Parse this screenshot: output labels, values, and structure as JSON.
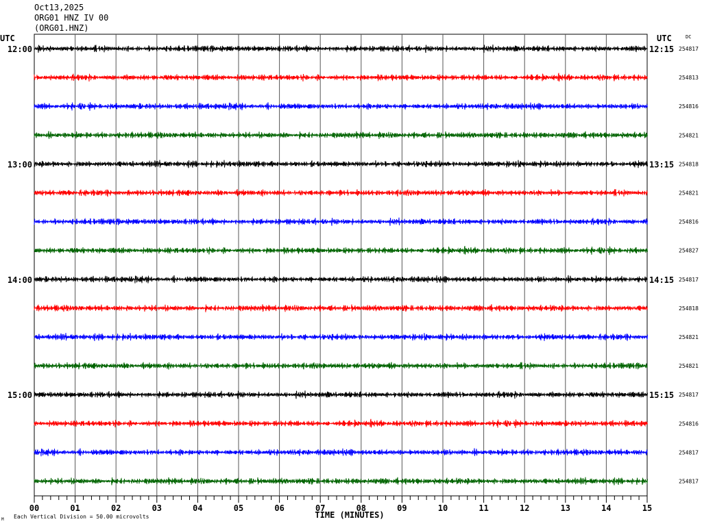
{
  "header": {
    "date": "Oct13,2025",
    "station": "ORG01 HNZ IV 00",
    "channel": "(ORG01.HNZ)"
  },
  "chart_data": {
    "type": "line",
    "title": "",
    "xlabel": "TIME (MINUTES)",
    "x_ticks": [
      "00",
      "01",
      "02",
      "03",
      "04",
      "05",
      "06",
      "07",
      "08",
      "09",
      "10",
      "11",
      "12",
      "13",
      "14",
      "15"
    ],
    "xlim": [
      0,
      15
    ],
    "left_axis_label": "UTC",
    "right_axis_label": "UTC",
    "dc_label": "DC",
    "left_time_labels": [
      "12:00",
      "",
      "",
      "",
      "13:00",
      "",
      "",
      "",
      "14:00",
      "",
      "",
      "",
      "15:00",
      "",
      "",
      ""
    ],
    "right_time_labels": [
      "12:15",
      "",
      "",
      "",
      "13:15",
      "",
      "",
      "",
      "14:15",
      "",
      "",
      "",
      "15:15",
      "",
      "",
      ""
    ],
    "dc_values": [
      "254817",
      "254813",
      "254816",
      "254821",
      "254818",
      "254821",
      "254816",
      "254827",
      "254817",
      "254818",
      "254821",
      "254821",
      "254817",
      "254816",
      "254817",
      "254817"
    ],
    "trace_colors": [
      "#000000",
      "#ff0000",
      "#0000ff",
      "#006400"
    ],
    "vertical_division_note": "Each Vertical Division =    50.00 microvolts",
    "corner_mark": "M"
  }
}
